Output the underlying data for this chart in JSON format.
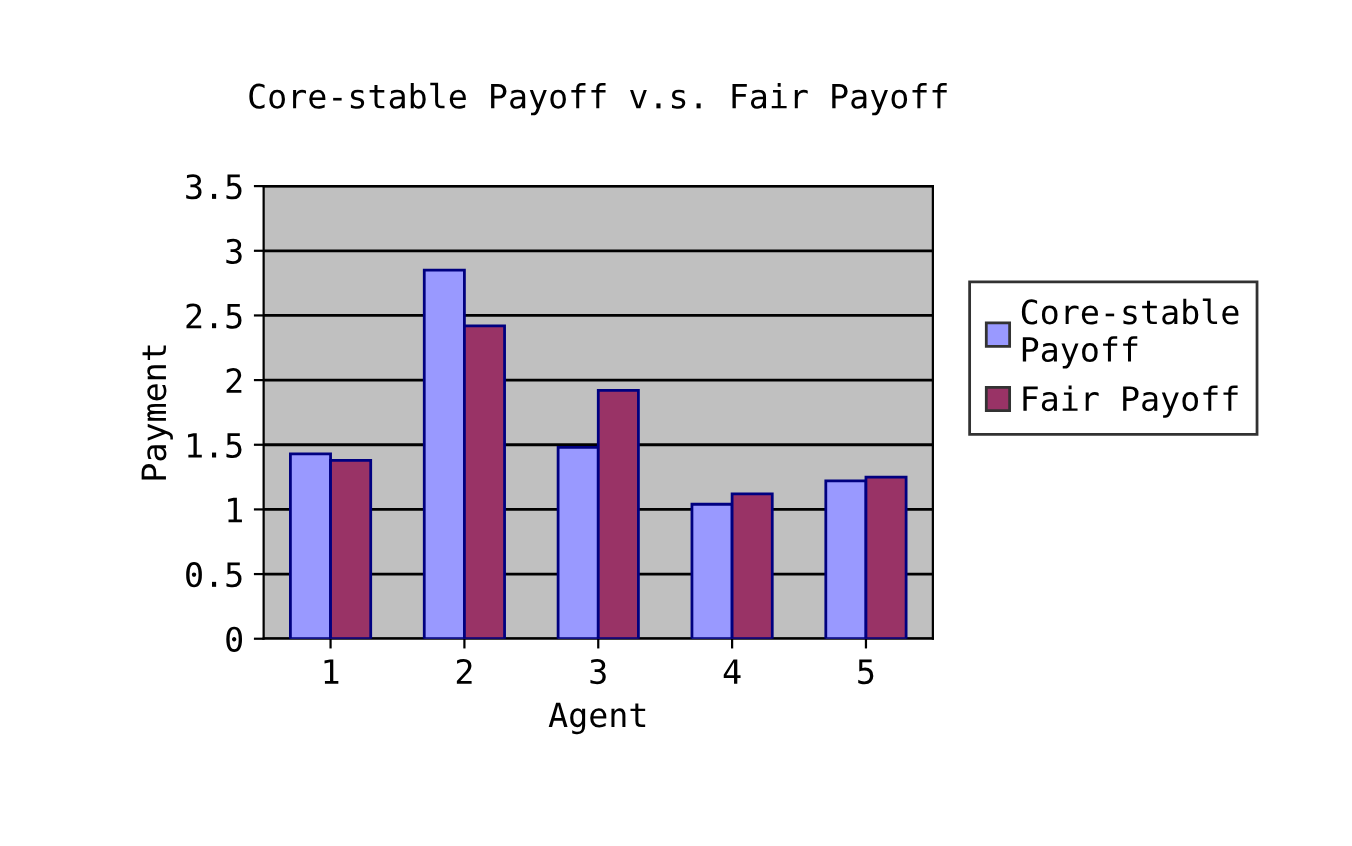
{
  "chart_data": {
    "type": "bar",
    "title": "Core-stable Payoff v.s. Fair Payoff",
    "xlabel": "Agent",
    "ylabel": "Payment",
    "categories": [
      "1",
      "2",
      "3",
      "4",
      "5"
    ],
    "series": [
      {
        "name": "Core-stable\nPayoff",
        "color": "#9999ff",
        "values": [
          1.43,
          2.85,
          1.48,
          1.04,
          1.22
        ]
      },
      {
        "name": "Fair Payoff",
        "color": "#993366",
        "values": [
          1.38,
          2.42,
          1.92,
          1.12,
          1.25
        ]
      }
    ],
    "ylim": [
      0,
      3.5
    ],
    "yticks": [
      0,
      0.5,
      1,
      1.5,
      2,
      2.5,
      3,
      3.5
    ],
    "grid": "y",
    "legend": "right"
  }
}
